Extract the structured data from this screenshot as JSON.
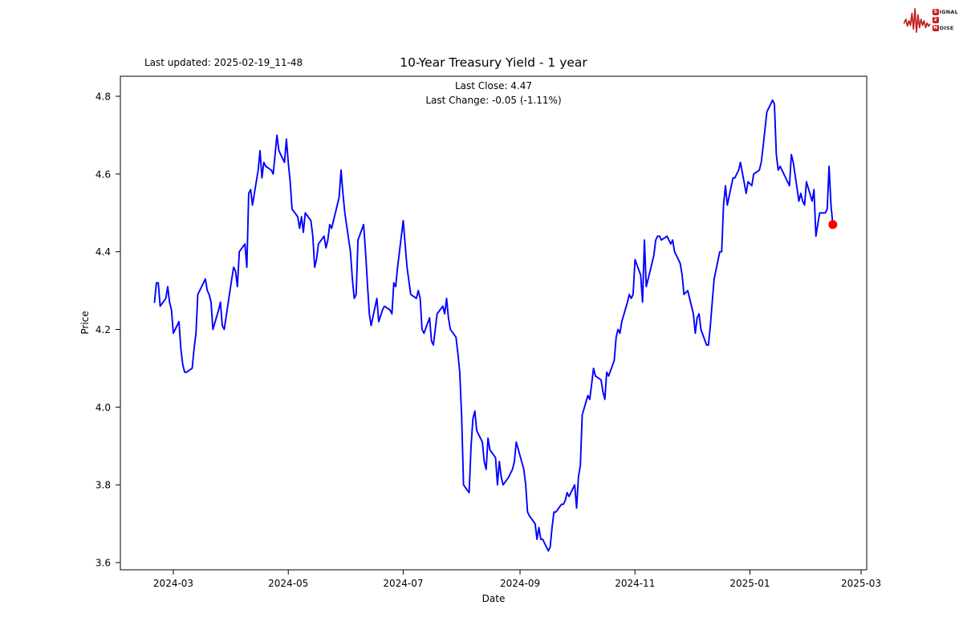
{
  "header": {
    "last_updated": "Last updated: 2025-02-19_11-48",
    "title": "10-Year Treasury Yield - 1 year",
    "subtitle_line1": "Last Close: 4.47",
    "subtitle_line2": "Last Change: -0.05 (-1.11%)"
  },
  "logo": {
    "color": "#c41e1e",
    "rows": [
      {
        "box": "S",
        "rest": "IGNAL"
      },
      {
        "box": "2",
        "rest": ""
      },
      {
        "box": "N",
        "rest": "OISE"
      }
    ]
  },
  "chart_data": {
    "type": "line",
    "title": "10-Year Treasury Yield - 1 year",
    "xlabel": "Date",
    "ylabel": "Price",
    "x_tick_labels": [
      "2024-03",
      "2024-05",
      "2024-07",
      "2024-09",
      "2024-11",
      "2025-01",
      "2025-03"
    ],
    "y_tick_labels": [
      "3.6",
      "3.8",
      "4.0",
      "4.2",
      "4.4",
      "4.6",
      "4.8"
    ],
    "ylim": [
      3.6,
      4.8
    ],
    "grid": false,
    "legend": "none",
    "line_color": "#0000ff",
    "last_point_color": "#ff0000",
    "last_close": 4.47,
    "last_change": "-0.05 (-1.11%)",
    "series": [
      {
        "name": "10-Year Treasury Yield",
        "points": [
          [
            "2024-02-20",
            4.27
          ],
          [
            "2024-02-21",
            4.32
          ],
          [
            "2024-02-22",
            4.32
          ],
          [
            "2024-02-23",
            4.26
          ],
          [
            "2024-02-26",
            4.28
          ],
          [
            "2024-02-27",
            4.31
          ],
          [
            "2024-02-28",
            4.27
          ],
          [
            "2024-02-29",
            4.25
          ],
          [
            "2024-03-01",
            4.19
          ],
          [
            "2024-03-04",
            4.22
          ],
          [
            "2024-03-05",
            4.15
          ],
          [
            "2024-03-06",
            4.11
          ],
          [
            "2024-03-07",
            4.09
          ],
          [
            "2024-03-08",
            4.09
          ],
          [
            "2024-03-11",
            4.1
          ],
          [
            "2024-03-12",
            4.15
          ],
          [
            "2024-03-13",
            4.19
          ],
          [
            "2024-03-14",
            4.29
          ],
          [
            "2024-03-15",
            4.3
          ],
          [
            "2024-03-18",
            4.33
          ],
          [
            "2024-03-19",
            4.3
          ],
          [
            "2024-03-20",
            4.29
          ],
          [
            "2024-03-21",
            4.27
          ],
          [
            "2024-03-22",
            4.2
          ],
          [
            "2024-03-25",
            4.25
          ],
          [
            "2024-03-26",
            4.27
          ],
          [
            "2024-03-27",
            4.21
          ],
          [
            "2024-03-28",
            4.2
          ],
          [
            "2024-04-01",
            4.33
          ],
          [
            "2024-04-02",
            4.36
          ],
          [
            "2024-04-03",
            4.35
          ],
          [
            "2024-04-04",
            4.31
          ],
          [
            "2024-04-05",
            4.4
          ],
          [
            "2024-04-08",
            4.42
          ],
          [
            "2024-04-09",
            4.36
          ],
          [
            "2024-04-10",
            4.55
          ],
          [
            "2024-04-11",
            4.56
          ],
          [
            "2024-04-12",
            4.52
          ],
          [
            "2024-04-15",
            4.61
          ],
          [
            "2024-04-16",
            4.66
          ],
          [
            "2024-04-17",
            4.59
          ],
          [
            "2024-04-18",
            4.63
          ],
          [
            "2024-04-19",
            4.62
          ],
          [
            "2024-04-22",
            4.61
          ],
          [
            "2024-04-23",
            4.6
          ],
          [
            "2024-04-24",
            4.65
          ],
          [
            "2024-04-25",
            4.7
          ],
          [
            "2024-04-26",
            4.66
          ],
          [
            "2024-04-29",
            4.63
          ],
          [
            "2024-04-30",
            4.69
          ],
          [
            "2024-05-01",
            4.63
          ],
          [
            "2024-05-02",
            4.58
          ],
          [
            "2024-05-03",
            4.51
          ],
          [
            "2024-05-06",
            4.49
          ],
          [
            "2024-05-07",
            4.46
          ],
          [
            "2024-05-08",
            4.49
          ],
          [
            "2024-05-09",
            4.45
          ],
          [
            "2024-05-10",
            4.5
          ],
          [
            "2024-05-13",
            4.48
          ],
          [
            "2024-05-14",
            4.44
          ],
          [
            "2024-05-15",
            4.36
          ],
          [
            "2024-05-16",
            4.38
          ],
          [
            "2024-05-17",
            4.42
          ],
          [
            "2024-05-20",
            4.44
          ],
          [
            "2024-05-21",
            4.41
          ],
          [
            "2024-05-22",
            4.43
          ],
          [
            "2024-05-23",
            4.47
          ],
          [
            "2024-05-24",
            4.46
          ],
          [
            "2024-05-28",
            4.54
          ],
          [
            "2024-05-29",
            4.61
          ],
          [
            "2024-05-30",
            4.55
          ],
          [
            "2024-05-31",
            4.5
          ],
          [
            "2024-06-03",
            4.4
          ],
          [
            "2024-06-04",
            4.33
          ],
          [
            "2024-06-05",
            4.28
          ],
          [
            "2024-06-06",
            4.29
          ],
          [
            "2024-06-07",
            4.43
          ],
          [
            "2024-06-10",
            4.47
          ],
          [
            "2024-06-11",
            4.4
          ],
          [
            "2024-06-12",
            4.32
          ],
          [
            "2024-06-13",
            4.24
          ],
          [
            "2024-06-14",
            4.21
          ],
          [
            "2024-06-17",
            4.28
          ],
          [
            "2024-06-18",
            4.22
          ],
          [
            "2024-06-20",
            4.25
          ],
          [
            "2024-06-21",
            4.26
          ],
          [
            "2024-06-24",
            4.25
          ],
          [
            "2024-06-25",
            4.24
          ],
          [
            "2024-06-26",
            4.32
          ],
          [
            "2024-06-27",
            4.31
          ],
          [
            "2024-06-28",
            4.36
          ],
          [
            "2024-07-01",
            4.48
          ],
          [
            "2024-07-02",
            4.42
          ],
          [
            "2024-07-03",
            4.36
          ],
          [
            "2024-07-05",
            4.29
          ],
          [
            "2024-07-08",
            4.28
          ],
          [
            "2024-07-09",
            4.3
          ],
          [
            "2024-07-10",
            4.28
          ],
          [
            "2024-07-11",
            4.2
          ],
          [
            "2024-07-12",
            4.19
          ],
          [
            "2024-07-15",
            4.23
          ],
          [
            "2024-07-16",
            4.17
          ],
          [
            "2024-07-17",
            4.16
          ],
          [
            "2024-07-18",
            4.2
          ],
          [
            "2024-07-19",
            4.24
          ],
          [
            "2024-07-22",
            4.26
          ],
          [
            "2024-07-23",
            4.24
          ],
          [
            "2024-07-24",
            4.28
          ],
          [
            "2024-07-25",
            4.23
          ],
          [
            "2024-07-26",
            4.2
          ],
          [
            "2024-07-29",
            4.18
          ],
          [
            "2024-07-30",
            4.14
          ],
          [
            "2024-07-31",
            4.09
          ],
          [
            "2024-08-01",
            3.98
          ],
          [
            "2024-08-02",
            3.8
          ],
          [
            "2024-08-05",
            3.78
          ],
          [
            "2024-08-06",
            3.9
          ],
          [
            "2024-08-07",
            3.97
          ],
          [
            "2024-08-08",
            3.99
          ],
          [
            "2024-08-09",
            3.94
          ],
          [
            "2024-08-12",
            3.91
          ],
          [
            "2024-08-13",
            3.86
          ],
          [
            "2024-08-14",
            3.84
          ],
          [
            "2024-08-15",
            3.92
          ],
          [
            "2024-08-16",
            3.89
          ],
          [
            "2024-08-19",
            3.87
          ],
          [
            "2024-08-20",
            3.8
          ],
          [
            "2024-08-21",
            3.86
          ],
          [
            "2024-08-22",
            3.82
          ],
          [
            "2024-08-23",
            3.8
          ],
          [
            "2024-08-26",
            3.82
          ],
          [
            "2024-08-27",
            3.83
          ],
          [
            "2024-08-28",
            3.84
          ],
          [
            "2024-08-29",
            3.86
          ],
          [
            "2024-08-30",
            3.91
          ],
          [
            "2024-09-03",
            3.84
          ],
          [
            "2024-09-04",
            3.8
          ],
          [
            "2024-09-05",
            3.73
          ],
          [
            "2024-09-06",
            3.72
          ],
          [
            "2024-09-09",
            3.7
          ],
          [
            "2024-09-10",
            3.66
          ],
          [
            "2024-09-11",
            3.69
          ],
          [
            "2024-09-12",
            3.66
          ],
          [
            "2024-09-13",
            3.66
          ],
          [
            "2024-09-16",
            3.63
          ],
          [
            "2024-09-17",
            3.64
          ],
          [
            "2024-09-18",
            3.69
          ],
          [
            "2024-09-19",
            3.73
          ],
          [
            "2024-09-20",
            3.73
          ],
          [
            "2024-09-23",
            3.75
          ],
          [
            "2024-09-24",
            3.75
          ],
          [
            "2024-09-25",
            3.76
          ],
          [
            "2024-09-26",
            3.78
          ],
          [
            "2024-09-27",
            3.77
          ],
          [
            "2024-09-30",
            3.8
          ],
          [
            "2024-10-01",
            3.74
          ],
          [
            "2024-10-02",
            3.82
          ],
          [
            "2024-10-03",
            3.85
          ],
          [
            "2024-10-04",
            3.98
          ],
          [
            "2024-10-07",
            4.03
          ],
          [
            "2024-10-08",
            4.02
          ],
          [
            "2024-10-09",
            4.06
          ],
          [
            "2024-10-10",
            4.1
          ],
          [
            "2024-10-11",
            4.08
          ],
          [
            "2024-10-14",
            4.07
          ],
          [
            "2024-10-15",
            4.04
          ],
          [
            "2024-10-16",
            4.02
          ],
          [
            "2024-10-17",
            4.09
          ],
          [
            "2024-10-18",
            4.08
          ],
          [
            "2024-10-21",
            4.12
          ],
          [
            "2024-10-22",
            4.18
          ],
          [
            "2024-10-23",
            4.2
          ],
          [
            "2024-10-24",
            4.19
          ],
          [
            "2024-10-25",
            4.22
          ],
          [
            "2024-10-28",
            4.27
          ],
          [
            "2024-10-29",
            4.29
          ],
          [
            "2024-10-30",
            4.28
          ],
          [
            "2024-10-31",
            4.29
          ],
          [
            "2024-11-01",
            4.38
          ],
          [
            "2024-11-04",
            4.34
          ],
          [
            "2024-11-05",
            4.27
          ],
          [
            "2024-11-06",
            4.43
          ],
          [
            "2024-11-07",
            4.31
          ],
          [
            "2024-11-08",
            4.33
          ],
          [
            "2024-11-11",
            4.39
          ],
          [
            "2024-11-12",
            4.43
          ],
          [
            "2024-11-13",
            4.44
          ],
          [
            "2024-11-14",
            4.44
          ],
          [
            "2024-11-15",
            4.43
          ],
          [
            "2024-11-18",
            4.44
          ],
          [
            "2024-11-19",
            4.43
          ],
          [
            "2024-11-20",
            4.42
          ],
          [
            "2024-11-21",
            4.43
          ],
          [
            "2024-11-22",
            4.4
          ],
          [
            "2024-11-25",
            4.37
          ],
          [
            "2024-11-26",
            4.34
          ],
          [
            "2024-11-27",
            4.29
          ],
          [
            "2024-11-29",
            4.3
          ],
          [
            "2024-12-02",
            4.24
          ],
          [
            "2024-12-03",
            4.19
          ],
          [
            "2024-12-04",
            4.23
          ],
          [
            "2024-12-05",
            4.24
          ],
          [
            "2024-12-06",
            4.2
          ],
          [
            "2024-12-09",
            4.16
          ],
          [
            "2024-12-10",
            4.16
          ],
          [
            "2024-12-11",
            4.21
          ],
          [
            "2024-12-12",
            4.27
          ],
          [
            "2024-12-13",
            4.33
          ],
          [
            "2024-12-16",
            4.4
          ],
          [
            "2024-12-17",
            4.4
          ],
          [
            "2024-12-18",
            4.52
          ],
          [
            "2024-12-19",
            4.57
          ],
          [
            "2024-12-20",
            4.52
          ],
          [
            "2024-12-23",
            4.59
          ],
          [
            "2024-12-24",
            4.59
          ],
          [
            "2024-12-26",
            4.61
          ],
          [
            "2024-12-27",
            4.63
          ],
          [
            "2024-12-30",
            4.55
          ],
          [
            "2024-12-31",
            4.58
          ],
          [
            "2025-01-02",
            4.57
          ],
          [
            "2025-01-03",
            4.6
          ],
          [
            "2025-01-06",
            4.61
          ],
          [
            "2025-01-07",
            4.63
          ],
          [
            "2025-01-08",
            4.67
          ],
          [
            "2025-01-10",
            4.76
          ],
          [
            "2025-01-13",
            4.79
          ],
          [
            "2025-01-14",
            4.78
          ],
          [
            "2025-01-15",
            4.65
          ],
          [
            "2025-01-16",
            4.61
          ],
          [
            "2025-01-17",
            4.62
          ],
          [
            "2025-01-21",
            4.58
          ],
          [
            "2025-01-22",
            4.57
          ],
          [
            "2025-01-23",
            4.65
          ],
          [
            "2025-01-24",
            4.63
          ],
          [
            "2025-01-27",
            4.53
          ],
          [
            "2025-01-28",
            4.55
          ],
          [
            "2025-01-29",
            4.53
          ],
          [
            "2025-01-30",
            4.52
          ],
          [
            "2025-01-31",
            4.58
          ],
          [
            "2025-02-03",
            4.53
          ],
          [
            "2025-02-04",
            4.56
          ],
          [
            "2025-02-05",
            4.44
          ],
          [
            "2025-02-06",
            4.47
          ],
          [
            "2025-02-07",
            4.5
          ],
          [
            "2025-02-10",
            4.5
          ],
          [
            "2025-02-11",
            4.51
          ],
          [
            "2025-02-12",
            4.62
          ],
          [
            "2025-02-13",
            4.52
          ],
          [
            "2025-02-14",
            4.47
          ]
        ]
      }
    ]
  }
}
